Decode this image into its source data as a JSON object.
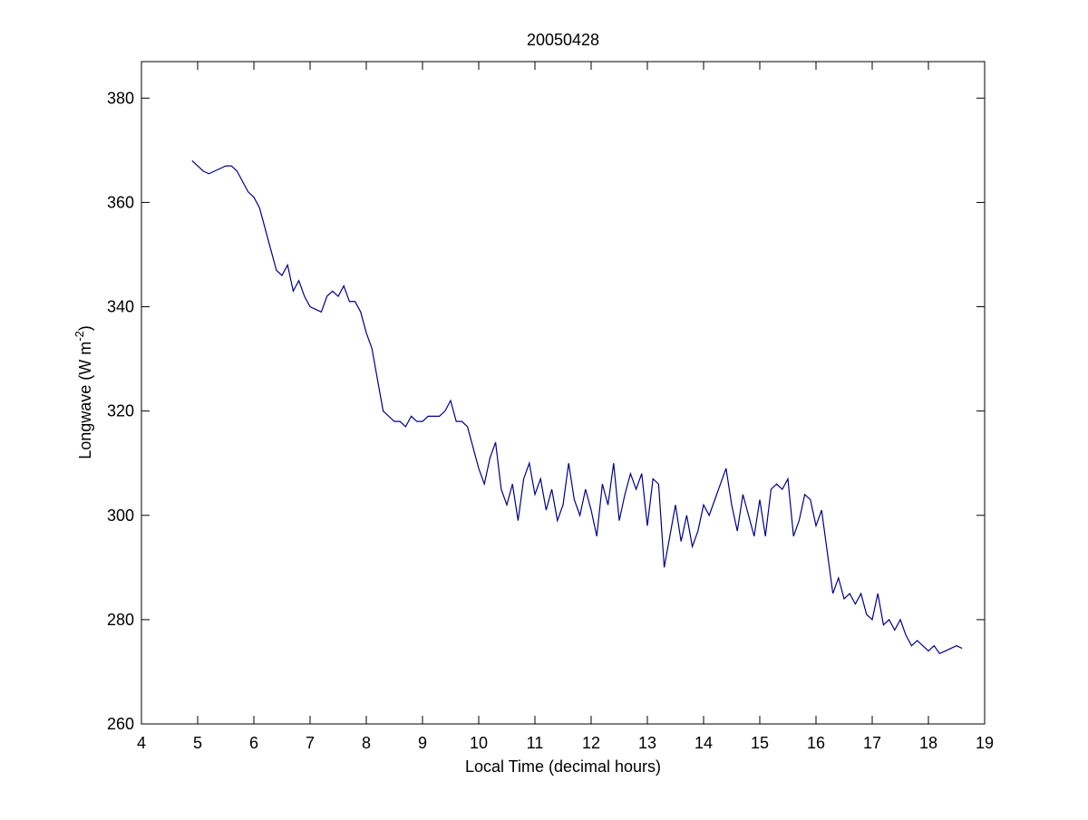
{
  "chart_data": {
    "type": "line",
    "title": "20050428",
    "xlabel": "Local Time (decimal hours)",
    "ylabel": {
      "text": "Longwave (W m",
      "superscript": "-2",
      "suffix": ")"
    },
    "xlim": [
      4,
      19
    ],
    "ylim": [
      260,
      387
    ],
    "xticks": [
      4,
      5,
      6,
      7,
      8,
      9,
      10,
      11,
      12,
      13,
      14,
      15,
      16,
      17,
      18,
      19
    ],
    "yticks": [
      260,
      280,
      300,
      320,
      340,
      360,
      380
    ],
    "grid": false,
    "x": [
      4.9,
      5.0,
      5.1,
      5.2,
      5.3,
      5.4,
      5.5,
      5.6,
      5.7,
      5.8,
      5.9,
      6.0,
      6.1,
      6.2,
      6.3,
      6.4,
      6.5,
      6.6,
      6.7,
      6.8,
      6.9,
      7.0,
      7.1,
      7.2,
      7.3,
      7.4,
      7.5,
      7.6,
      7.7,
      7.8,
      7.9,
      8.0,
      8.1,
      8.2,
      8.3,
      8.4,
      8.5,
      8.6,
      8.7,
      8.8,
      8.9,
      9.0,
      9.1,
      9.2,
      9.3,
      9.4,
      9.5,
      9.6,
      9.7,
      9.8,
      9.9,
      10.0,
      10.1,
      10.2,
      10.3,
      10.4,
      10.5,
      10.6,
      10.7,
      10.8,
      10.9,
      11.0,
      11.1,
      11.2,
      11.3,
      11.4,
      11.5,
      11.6,
      11.7,
      11.8,
      11.9,
      12.0,
      12.1,
      12.2,
      12.3,
      12.4,
      12.5,
      12.6,
      12.7,
      12.8,
      12.9,
      13.0,
      13.1,
      13.2,
      13.3,
      13.4,
      13.5,
      13.6,
      13.7,
      13.8,
      13.9,
      14.0,
      14.1,
      14.2,
      14.3,
      14.4,
      14.5,
      14.6,
      14.7,
      14.8,
      14.9,
      15.0,
      15.1,
      15.2,
      15.3,
      15.4,
      15.5,
      15.6,
      15.7,
      15.8,
      15.9,
      16.0,
      16.1,
      16.2,
      16.3,
      16.4,
      16.5,
      16.6,
      16.7,
      16.8,
      16.9,
      17.0,
      17.1,
      17.2,
      17.3,
      17.4,
      17.5,
      17.6,
      17.7,
      17.8,
      17.9,
      18.0,
      18.1,
      18.2,
      18.3,
      18.4,
      18.5,
      18.6
    ],
    "series": [
      {
        "color": "#00008b",
        "values": [
          368,
          367,
          366,
          365.5,
          366,
          366.5,
          367,
          367,
          366,
          364,
          362,
          361,
          359,
          355,
          351,
          347,
          346,
          348,
          343,
          345,
          342,
          340,
          339.5,
          339,
          342,
          343,
          342,
          344,
          341,
          341,
          339,
          335,
          332,
          326,
          320,
          319,
          318,
          318,
          317,
          319,
          318,
          318,
          319,
          319,
          319,
          320,
          322,
          318,
          318,
          317,
          313,
          309,
          306,
          311,
          314,
          305,
          302,
          306,
          299,
          307,
          310,
          304,
          307,
          301,
          305,
          299,
          302,
          310,
          303,
          300,
          305,
          301,
          296,
          306,
          302,
          310,
          299,
          304,
          308,
          305,
          308,
          298,
          307,
          306,
          290,
          296,
          302,
          295,
          300,
          294,
          297,
          302,
          300,
          303,
          306,
          309,
          302,
          297,
          304,
          300,
          296,
          303,
          296,
          305,
          306,
          305,
          307,
          296,
          299,
          304,
          303,
          298,
          301,
          293,
          285,
          288,
          284,
          285,
          283,
          285,
          281,
          280,
          285,
          279,
          280,
          278,
          280,
          277,
          275,
          276,
          275,
          274,
          275,
          273.5,
          274,
          274.5,
          275,
          274.5
        ]
      }
    ]
  }
}
